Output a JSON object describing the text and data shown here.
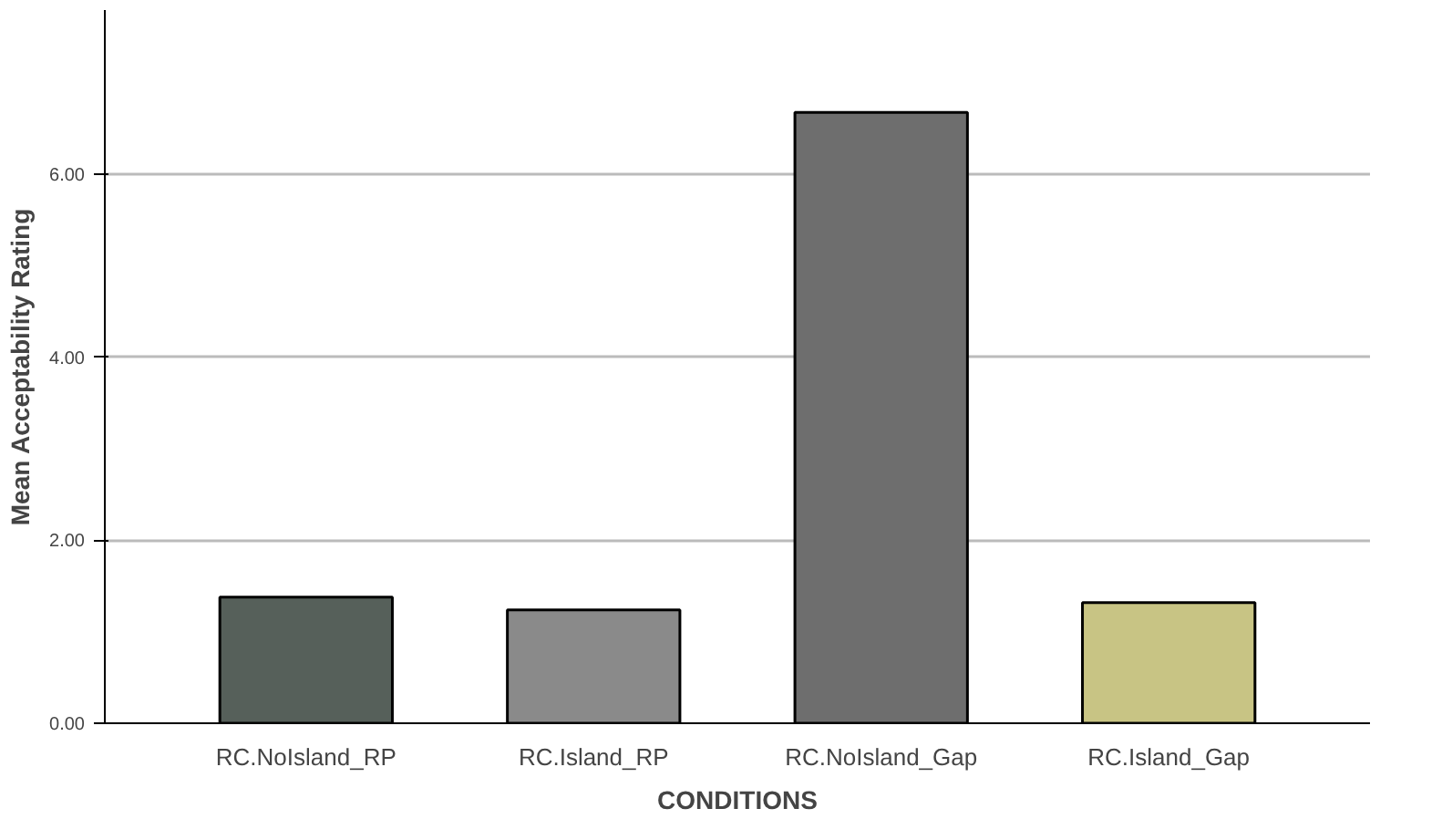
{
  "chart_data": {
    "type": "bar",
    "xlabel": "CONDITIONS",
    "ylabel": "Mean Acceptability Rating",
    "categories": [
      "RC.NoIsland_RP",
      "RC.Island_RP",
      "RC.NoIsland_Gap",
      "RC.Island_Gap"
    ],
    "values": [
      1.38,
      1.24,
      6.68,
      1.32
    ],
    "colors": [
      "#56605a",
      "#8a8a8a",
      "#6e6e6e",
      "#c8c484"
    ],
    "ylim": [
      0,
      7.8
    ],
    "yticks": [
      {
        "value": 0,
        "label": "0.00"
      },
      {
        "value": 2,
        "label": "2.00"
      },
      {
        "value": 4,
        "label": "4.00"
      },
      {
        "value": 6,
        "label": "6.00"
      }
    ],
    "grid": "y"
  }
}
